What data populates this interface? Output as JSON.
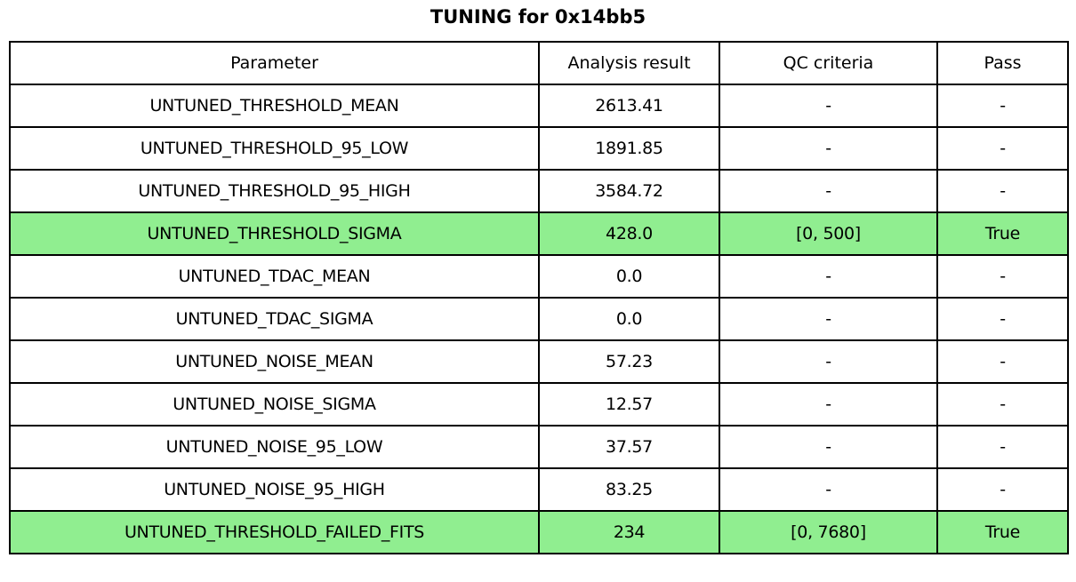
{
  "title": "TUNING for 0x14bb5",
  "colors": {
    "highlight_green": "#90EE90",
    "border": "#000000",
    "background": "#ffffff"
  },
  "table": {
    "columns": [
      "Parameter",
      "Analysis result",
      "QC criteria",
      "Pass"
    ],
    "rows": [
      {
        "parameter": "UNTUNED_THRESHOLD_MEAN",
        "analysis_result": "2613.41",
        "qc_criteria": "-",
        "pass": "-",
        "highlighted": false
      },
      {
        "parameter": "UNTUNED_THRESHOLD_95_LOW",
        "analysis_result": "1891.85",
        "qc_criteria": "-",
        "pass": "-",
        "highlighted": false
      },
      {
        "parameter": "UNTUNED_THRESHOLD_95_HIGH",
        "analysis_result": "3584.72",
        "qc_criteria": "-",
        "pass": "-",
        "highlighted": false
      },
      {
        "parameter": "UNTUNED_THRESHOLD_SIGMA",
        "analysis_result": "428.0",
        "qc_criteria": "[0, 500]",
        "pass": "True",
        "highlighted": true
      },
      {
        "parameter": "UNTUNED_TDAC_MEAN",
        "analysis_result": "0.0",
        "qc_criteria": "-",
        "pass": "-",
        "highlighted": false
      },
      {
        "parameter": "UNTUNED_TDAC_SIGMA",
        "analysis_result": "0.0",
        "qc_criteria": "-",
        "pass": "-",
        "highlighted": false
      },
      {
        "parameter": "UNTUNED_NOISE_MEAN",
        "analysis_result": "57.23",
        "qc_criteria": "-",
        "pass": "-",
        "highlighted": false
      },
      {
        "parameter": "UNTUNED_NOISE_SIGMA",
        "analysis_result": "12.57",
        "qc_criteria": "-",
        "pass": "-",
        "highlighted": false
      },
      {
        "parameter": "UNTUNED_NOISE_95_LOW",
        "analysis_result": "37.57",
        "qc_criteria": "-",
        "pass": "-",
        "highlighted": false
      },
      {
        "parameter": "UNTUNED_NOISE_95_HIGH",
        "analysis_result": "83.25",
        "qc_criteria": "-",
        "pass": "-",
        "highlighted": false
      },
      {
        "parameter": "UNTUNED_THRESHOLD_FAILED_FITS",
        "analysis_result": "234",
        "qc_criteria": "[0, 7680]",
        "pass": "True",
        "highlighted": true
      }
    ]
  },
  "chart_data": {
    "type": "table",
    "title": "TUNING for 0x14bb5",
    "columns": [
      "Parameter",
      "Analysis result",
      "QC criteria",
      "Pass"
    ],
    "rows": [
      [
        "UNTUNED_THRESHOLD_MEAN",
        "2613.41",
        "-",
        "-"
      ],
      [
        "UNTUNED_THRESHOLD_95_LOW",
        "1891.85",
        "-",
        "-"
      ],
      [
        "UNTUNED_THRESHOLD_95_HIGH",
        "3584.72",
        "-",
        "-"
      ],
      [
        "UNTUNED_THRESHOLD_SIGMA",
        "428.0",
        "[0, 500]",
        "True"
      ],
      [
        "UNTUNED_TDAC_MEAN",
        "0.0",
        "-",
        "-"
      ],
      [
        "UNTUNED_TDAC_SIGMA",
        "0.0",
        "-",
        "-"
      ],
      [
        "UNTUNED_NOISE_MEAN",
        "57.23",
        "-",
        "-"
      ],
      [
        "UNTUNED_NOISE_SIGMA",
        "12.57",
        "-",
        "-"
      ],
      [
        "UNTUNED_NOISE_95_LOW",
        "37.57",
        "-",
        "-"
      ],
      [
        "UNTUNED_NOISE_95_HIGH",
        "83.25",
        "-",
        "-"
      ],
      [
        "UNTUNED_THRESHOLD_FAILED_FITS",
        "234",
        "[0, 7680]",
        "True"
      ]
    ],
    "highlighted_rows": [
      3,
      10
    ],
    "highlight_color": "#90EE90",
    "layout": {
      "grid": true,
      "all_cells_centered": true,
      "header_row": true
    }
  }
}
